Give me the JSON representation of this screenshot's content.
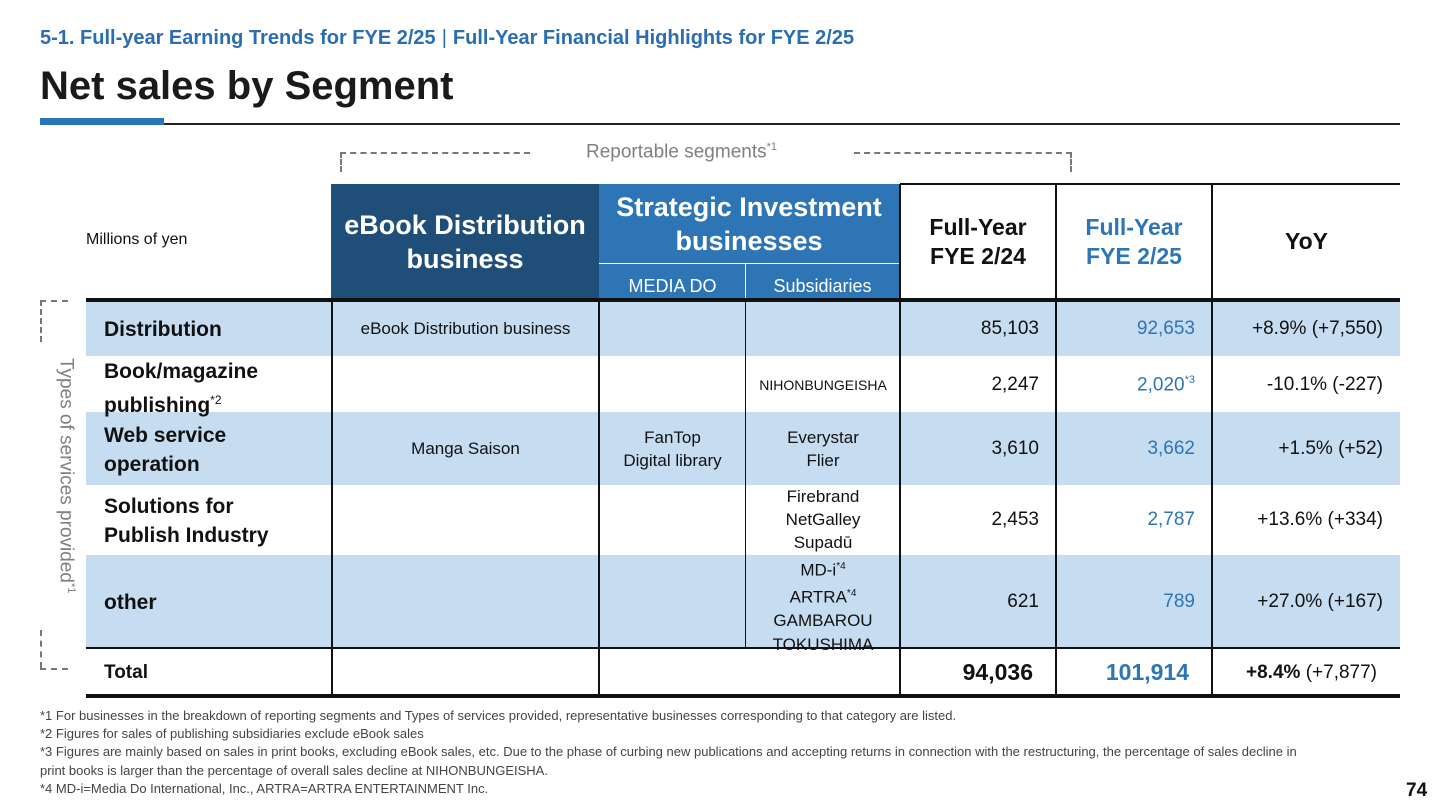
{
  "header": {
    "breadcrumb_left": "5-1. Full-year Earning Trends for FYE 2/25",
    "breadcrumb_sep": "|",
    "breadcrumb_right": "Full-Year Financial Highlights for FYE 2/25",
    "title": "Net sales by Segment"
  },
  "segments": {
    "reportable_label": "Reportable segments",
    "reportable_note": "*1",
    "types_label": "Types of services provided",
    "types_note": "*1",
    "units": "Millions of yen",
    "ebook_line1": "eBook Distribution",
    "ebook_line2": "business",
    "strategic_line1": "Strategic Investment",
    "strategic_line2": "businesses",
    "sub_mediado": "MEDIA DO",
    "sub_subsidiaries": "Subsidiaries",
    "fy24_line1": "Full-Year",
    "fy24_line2": "FYE 2/24",
    "fy25_line1": "Full-Year",
    "fy25_line2": "FYE 2/25",
    "yoy": "YoY"
  },
  "rows": {
    "distribution": {
      "label": "Distribution",
      "ebook": "eBook Distribution business",
      "fy24": "85,103",
      "fy25": "92,653",
      "yoy": "+8.9% (+7,550)"
    },
    "publishing": {
      "label_line1": "Book/magazine",
      "label_line2": "publishing",
      "note": "*2",
      "subsidiaries": "NIHONBUNGEISHA",
      "fy24": "2,247",
      "fy25": "2,020",
      "fy25_note": "*3",
      "yoy": "-10.1% (-227)"
    },
    "web": {
      "label_line1": "Web service",
      "label_line2": "operation",
      "ebook": "Manga Saison",
      "mediado_line1": "FanTop",
      "mediado_line2": "Digital library",
      "sub_line1": "Everystar",
      "sub_line2": "Flier",
      "fy24": "3,610",
      "fy25": "3,662",
      "yoy": "+1.5% (+52)"
    },
    "solutions": {
      "label_line1": "Solutions for",
      "label_line2": "Publish Industry",
      "sub_line1": "Firebrand",
      "sub_line2": "NetGalley",
      "sub_line3": "Supadū",
      "fy24": "2,453",
      "fy25": "2,787",
      "yoy": "+13.6% (+334)"
    },
    "other": {
      "label": "other",
      "sub_line1": "MD-i",
      "sub_line1_note": "*4",
      "sub_line2": "ARTRA",
      "sub_line2_note": "*4",
      "sub_line3": "GAMBAROU",
      "sub_line4": "TOKUSHIMA",
      "fy24": "621",
      "fy25": "789",
      "yoy": "+27.0% (+167)"
    },
    "total": {
      "label": "Total",
      "fy24": "94,036",
      "fy25": "101,914",
      "yoy_bold": "+8.4%",
      "yoy_rest": " (+7,877)"
    }
  },
  "footnotes": {
    "f1": "*1 For businesses in the breakdown of reporting segments and Types of services provided, representative businesses corresponding to that category are listed.",
    "f2": "*2 Figures for sales of publishing subsidiaries exclude eBook sales",
    "f3a": "*3 Figures are mainly based on sales in print books, excluding eBook sales, etc. Due to the phase of curbing new publications and accepting returns in connection with the restructuring, the percentage of sales decline in",
    "f3b": "print books is larger than the percentage of overall sales decline at NIHONBUNGEISHA.",
    "f4": "*4 MD-i=Media Do International, Inc., ARTRA=ARTRA ENTERTAINMENT Inc."
  },
  "page_number": "74",
  "colors": {
    "accent_blue": "#2e75b6",
    "dark_navy": "#1f4e79",
    "row_band": "#c6dcf0",
    "breadcrumb": "#2a6db0"
  }
}
